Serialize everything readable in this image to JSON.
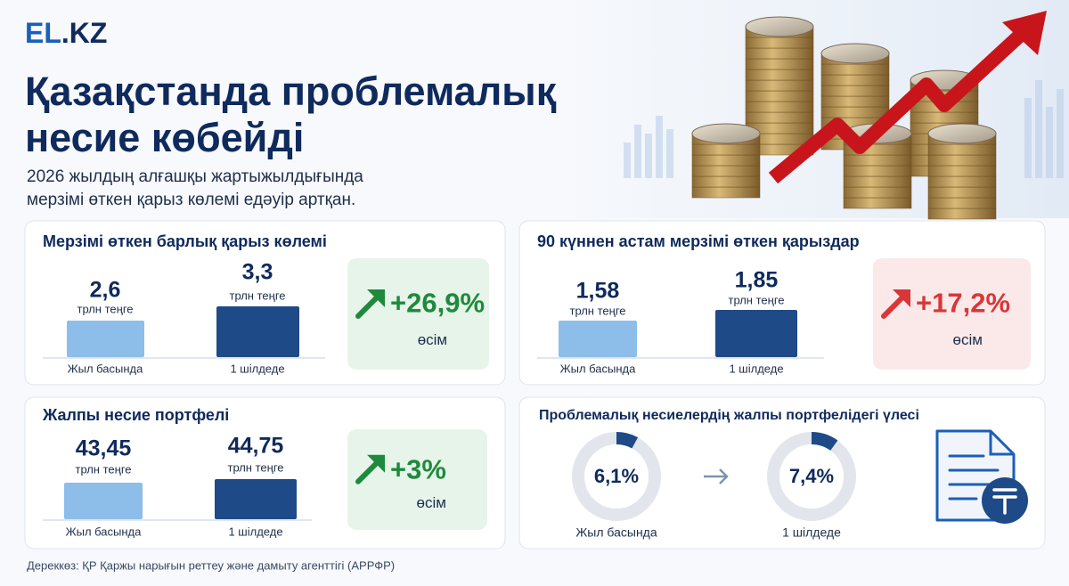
{
  "logo": {
    "part1": "EL",
    "part2": ".KZ"
  },
  "title": {
    "line1": "Қазақстанда проблемалық",
    "line2": "несие көбейді"
  },
  "subtitle": {
    "line1": "2026 жылдың алғашқы жартыжылдығында",
    "line2": "мерзімі өткен қарыз көлемі едәуір артқан."
  },
  "panels": [
    {
      "title": "Мерзімі өткен барлық қарыз көлемі",
      "items": [
        {
          "value": "2,6",
          "unit": "трлн теңге",
          "period": "Жыл басында"
        },
        {
          "value": "3,3",
          "unit": "трлн теңге",
          "period": "1 шілдеде"
        }
      ],
      "growth": {
        "value": "+26,9%",
        "label": "өсім"
      }
    },
    {
      "title": "90 күннен астам мерзімі өткен қарыздар",
      "items": [
        {
          "value": "1,58",
          "unit": "трлн теңге",
          "period": "Жыл басында"
        },
        {
          "value": "1,85",
          "unit": "трлн теңге",
          "period": "1 шілдеде"
        }
      ],
      "growth": {
        "value": "+17,2%",
        "label": "өсім"
      }
    },
    {
      "title": "Жалпы несие портфелі",
      "items": [
        {
          "value": "43,45",
          "unit": "трлн теңге",
          "period": "Жыл басында"
        },
        {
          "value": "44,75",
          "unit": "трлн теңге",
          "period": "1 шілдеде"
        }
      ],
      "growth": {
        "value": "+3%",
        "label": "өсім"
      }
    }
  ],
  "share_panel": {
    "title": "Проблемалық несиелердің жалпы портфелідегі үлесі",
    "items": [
      {
        "value": "6,1%",
        "period": "Жыл басында"
      },
      {
        "value": "7,4%",
        "period": "1 шілдеде"
      }
    ]
  },
  "source": "Дереккөз: ҚР Қаржы нарығын реттеу және дамыту агенттігі (АРРФР)"
}
